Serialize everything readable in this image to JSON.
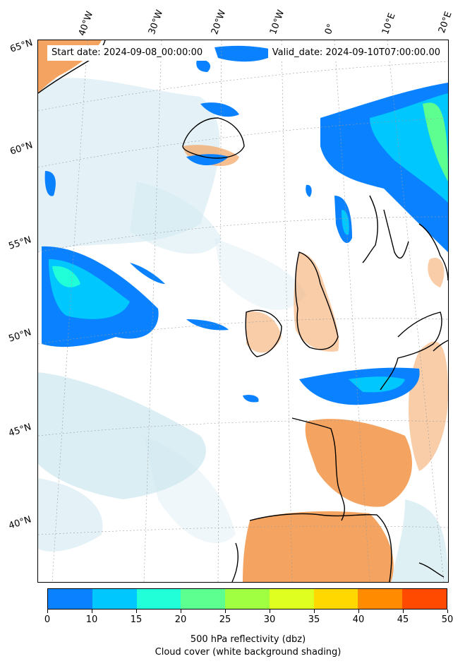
{
  "map": {
    "start_date": "Start date: 2024-09-08_00:00:00",
    "valid_date": "Valid_date: 2024-09-10T07:00:00.00",
    "lon_labels": [
      "40°W",
      "30°W",
      "20°W",
      "10°W",
      "0°",
      "10°E",
      "20°E"
    ],
    "lat_labels": [
      "65°N",
      "60°N",
      "55°N",
      "50°N",
      "45°N",
      "40°N"
    ],
    "land_color": "#f4a460",
    "cloud_color": "#add8e6",
    "coast_color": "#000000"
  },
  "colorbar": {
    "ticks": [
      "0",
      "10",
      "15",
      "20",
      "25",
      "30",
      "35",
      "40",
      "45",
      "50"
    ],
    "colors": [
      "#0a82ff",
      "#00c8ff",
      "#20ffd8",
      "#5cff90",
      "#a0ff40",
      "#dfff20",
      "#ffd800",
      "#ff8c00",
      "#ff4a00"
    ],
    "label_line1": "500 hPa reflectivity (dbz)",
    "label_line2": "Cloud cover (white background shading)"
  }
}
